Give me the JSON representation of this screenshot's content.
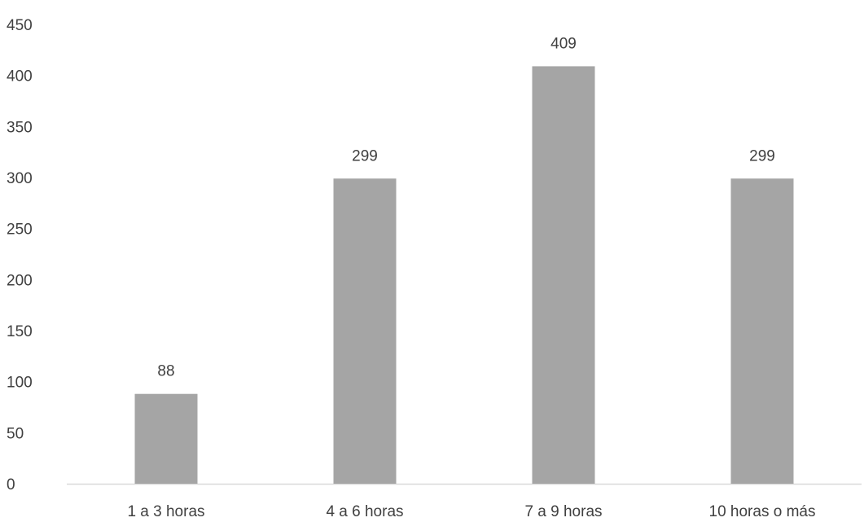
{
  "chart_data": {
    "type": "bar",
    "categories": [
      "1 a 3 horas",
      "4 a 6 horas",
      "7 a 9 horas",
      "10 horas o más"
    ],
    "values": [
      88,
      299,
      409,
      299
    ],
    "data_labels": [
      "88",
      "299",
      "409",
      "299"
    ],
    "yticks": [
      "0",
      "50",
      "100",
      "150",
      "200",
      "250",
      "300",
      "350",
      "400",
      "450"
    ],
    "ylim": [
      0,
      450
    ],
    "title": "",
    "xlabel": "",
    "ylabel": "",
    "grid": false,
    "legend": "none",
    "bar_color": "#a5a5a5",
    "axis_color": "#d9d9d9",
    "text_color": "#404040"
  }
}
